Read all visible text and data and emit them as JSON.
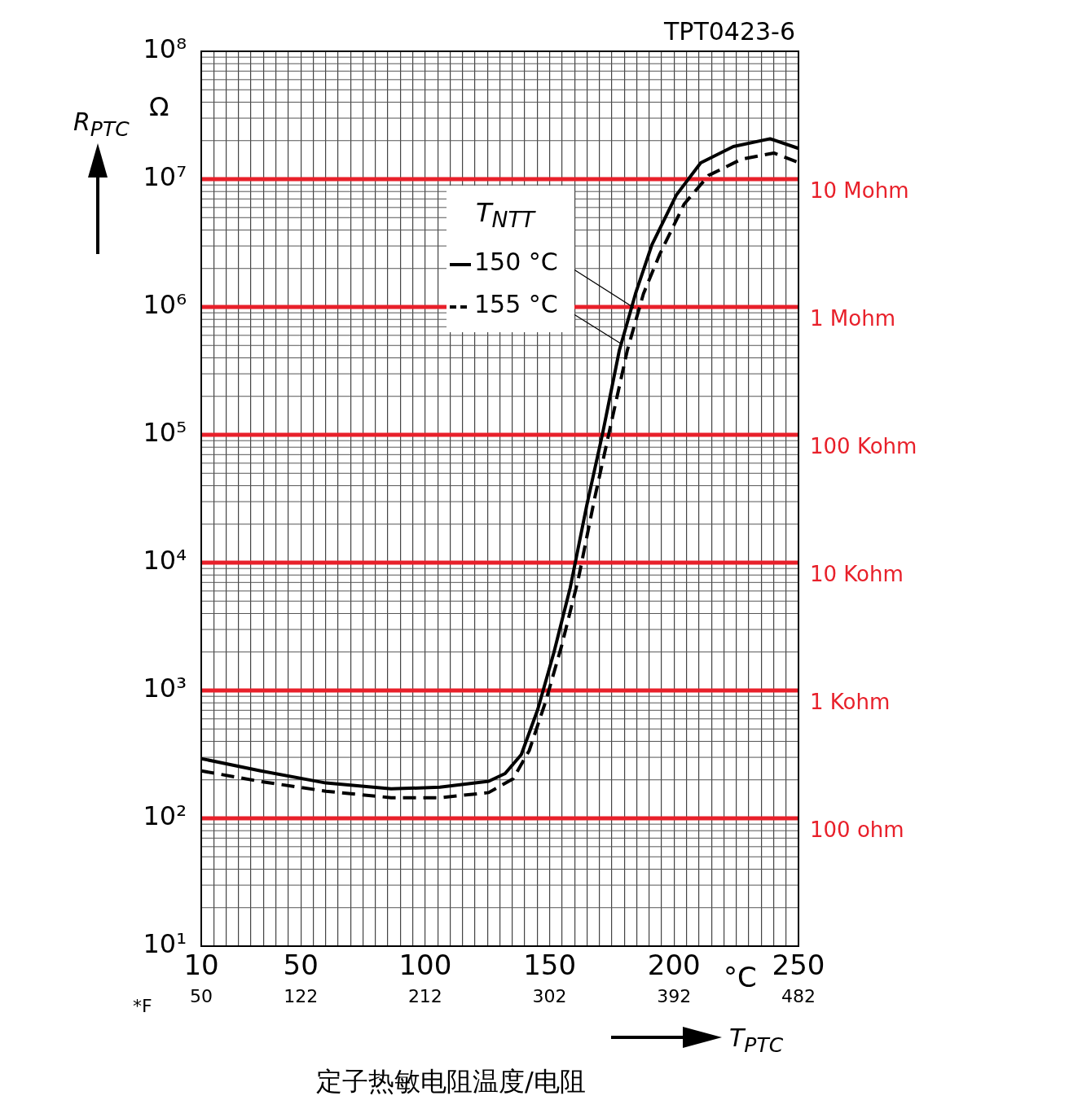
{
  "chart_data": {
    "type": "line",
    "xlabel": "T$_{PTC}$",
    "ylabel": "R$_{PTC}$",
    "x2label": "*F",
    "legend_title": "T$_{NTT}$",
    "annotations": [
      "TPT0423-6",
      "Ω",
      "°C",
      "定子热敏电阻温度/电阻"
    ],
    "log": "y",
    "grid": true,
    "legend": "top",
    "marker": "none",
    "xlim": [
      10,
      250
    ],
    "xticks": [
      {
        "value": 10,
        "label": "10"
      },
      {
        "value": 15,
        "label": null
      },
      {
        "value": 20,
        "label": null
      },
      {
        "value": 25,
        "label": null
      },
      {
        "value": 30,
        "label": null
      },
      {
        "value": 35,
        "label": null
      },
      {
        "value": 40,
        "label": null
      },
      {
        "value": 45,
        "label": null
      },
      {
        "value": 50,
        "label": "50"
      },
      {
        "value": 55,
        "label": null
      },
      {
        "value": 60,
        "label": null
      },
      {
        "value": 65,
        "label": null
      },
      {
        "value": 70,
        "label": null
      },
      {
        "value": 75,
        "label": null
      },
      {
        "value": 80,
        "label": null
      },
      {
        "value": 85,
        "label": null
      },
      {
        "value": 90,
        "label": null
      },
      {
        "value": 95,
        "label": null
      },
      {
        "value": 100,
        "label": "100"
      },
      {
        "value": 105,
        "label": null
      },
      {
        "value": 110,
        "label": null
      },
      {
        "value": 115,
        "label": null
      },
      {
        "value": 120,
        "label": null
      },
      {
        "value": 125,
        "label": null
      },
      {
        "value": 130,
        "label": null
      },
      {
        "value": 135,
        "label": null
      },
      {
        "value": 140,
        "label": null
      },
      {
        "value": 145,
        "label": null
      },
      {
        "value": 150,
        "label": "150"
      },
      {
        "value": 155,
        "label": null
      },
      {
        "value": 160,
        "label": null
      },
      {
        "value": 165,
        "label": null
      },
      {
        "value": 170,
        "label": null
      },
      {
        "value": 175,
        "label": null
      },
      {
        "value": 180,
        "label": null
      },
      {
        "value": 185,
        "label": null
      },
      {
        "value": 190,
        "label": null
      },
      {
        "value": 195,
        "label": null
      },
      {
        "value": 200,
        "label": "200"
      },
      {
        "value": 205,
        "label": null
      },
      {
        "value": 210,
        "label": null
      },
      {
        "value": 215,
        "label": null
      },
      {
        "value": 220,
        "label": null
      },
      {
        "value": 225,
        "label": null
      },
      {
        "value": 230,
        "label": null
      },
      {
        "value": 235,
        "label": null
      },
      {
        "value": 240,
        "label": null
      },
      {
        "value": 245,
        "label": null
      },
      {
        "value": 250,
        "label": "250"
      }
    ],
    "x2lim": [
      50,
      482
    ],
    "x2ticks": [
      50,
      122,
      212,
      302,
      392,
      482
    ],
    "ylim": [
      10,
      100000000
    ],
    "yticks": [
      {
        "value": 10,
        "label": "10¹"
      },
      {
        "value": 100,
        "label": "10²"
      },
      {
        "value": 1000,
        "label": "10³"
      },
      {
        "value": 10000,
        "label": "10⁴"
      },
      {
        "value": 100000,
        "label": "10⁵"
      },
      {
        "value": 1000000,
        "label": "10⁶"
      },
      {
        "value": 10000000,
        "label": "10⁷"
      },
      {
        "value": 100000000,
        "label": "10⁸"
      }
    ],
    "ref_lines": [
      {
        "axis": "y",
        "value": 10000000,
        "label": "10 Mohm",
        "color": "#e8202a"
      },
      {
        "axis": "y",
        "value": 1000000,
        "label": "1 Mohm",
        "color": "#e8202a"
      },
      {
        "axis": "y",
        "value": 100000,
        "label": "100 Kohm",
        "color": "#e8202a"
      },
      {
        "axis": "y",
        "value": 10000,
        "label": "10 Kohm",
        "color": "#e8202a"
      },
      {
        "axis": "y",
        "value": 1000,
        "label": "1 Kohm",
        "color": "#e8202a"
      },
      {
        "axis": "y",
        "value": 100,
        "label": "100 ohm",
        "color": "#e8202a"
      }
    ],
    "series": [
      {
        "name": "150 °C",
        "color": "#000000",
        "line_style": "solid",
        "x": [
          10,
          33.9,
          60.1,
          86.3,
          105.9,
          125.5,
          132.1,
          138.6,
          145.2,
          151.7,
          158.3,
          164.9,
          171.4,
          178,
          184.5,
          191.1,
          200.9,
          210.7,
          223.8,
          238.6,
          250
        ],
        "values": [
          293,
          235,
          189,
          170,
          175,
          195,
          224,
          315,
          708,
          1980,
          6400,
          28000,
          105000,
          457000,
          1270000,
          3070000,
          7500000,
          13400000,
          18000000,
          20700000,
          17400000
        ]
      },
      {
        "name": "155 °C",
        "color": "#000000",
        "line_style": "dashed",
        "x": [
          10,
          33.9,
          60.1,
          86.3,
          105.9,
          125.5,
          135.3,
          141.8,
          148.4,
          154.9,
          161.5,
          168.1,
          174.6,
          181.2,
          187.7,
          194.3,
          204.1,
          213.9,
          227,
          240.1,
          250
        ],
        "values": [
          235,
          194,
          163,
          145,
          145,
          159,
          204,
          339,
          820,
          2270,
          7400,
          32000,
          120000,
          457000,
          1270000,
          2600000,
          6400000,
          10700000,
          14300000,
          16000000,
          13500000
        ]
      }
    ]
  }
}
